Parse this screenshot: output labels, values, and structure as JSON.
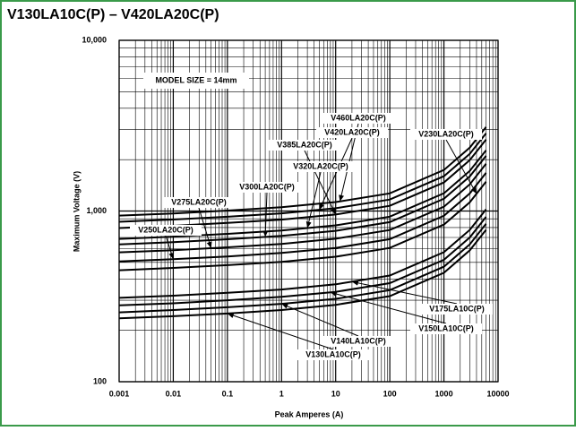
{
  "chart_data": {
    "type": "line",
    "title": "V130LA10C(P) – V420LA20C(P)",
    "annotation": "MODEL SIZE = 14mm",
    "x_label": "Peak Amperes (A)",
    "y_label": "Maximum Voltage (V)",
    "log_x": true,
    "log_y": true,
    "grid": true,
    "xlim": [
      0.001,
      10000
    ],
    "xticks": [
      0.001,
      0.01,
      0.1,
      1,
      10,
      100,
      1000,
      10000
    ],
    "ylim": [
      100,
      10000
    ],
    "yticks": [
      100,
      {
        "value": 1000,
        "label": "1,000"
      },
      {
        "value": 10000,
        "label": "10,000"
      }
    ],
    "x": [
      0.001,
      0.01,
      0.1,
      1,
      10,
      100,
      1000,
      3000,
      6000
    ],
    "series": [
      {
        "name": "V460LA20C(P)",
        "color": "#000000",
        "values": [
          940,
          968,
          1006,
          1053,
          1128,
          1269,
          1739,
          2350,
          3102
        ]
      },
      {
        "name": "V420LA20C(P)",
        "color": "#000000",
        "values": [
          865,
          891,
          926,
          969,
          1038,
          1168,
          1600,
          2163,
          2855
        ]
      },
      {
        "name": "V385LA20C(P)",
        "color": "#000000",
        "values": [
          795,
          819,
          851,
          890,
          954,
          1073,
          1471,
          1988,
          2624
        ]
      },
      {
        "name": "V320LA20C(P)",
        "color": "#000000",
        "values": [
          687,
          708,
          735,
          769,
          824,
          927,
          1271,
          1718,
          2267
        ]
      },
      {
        "name": "V300LA20C(P)",
        "color": "#000000",
        "values": [
          638,
          657,
          683,
          715,
          766,
          861,
          1180,
          1595,
          2105
        ]
      },
      {
        "name": "V275LA20C(P)",
        "color": "#000000",
        "values": [
          573,
          590,
          613,
          642,
          688,
          774,
          1060,
          1433,
          1891
        ]
      },
      {
        "name": "V250LA20C(P)",
        "color": "#000000",
        "values": [
          507,
          522,
          542,
          568,
          608,
          684,
          938,
          1268,
          1673
        ]
      },
      {
        "name": "V230LA20C(P)",
        "color": "#000000",
        "values": [
          450,
          464,
          482,
          504,
          540,
          608,
          833,
          1125,
          1485
        ]
      },
      {
        "name": "V175LA10C(P)",
        "color": "#000000",
        "values": [
          310,
          319,
          332,
          347,
          372,
          419,
          574,
          775,
          1023
        ]
      },
      {
        "name": "V150LA10C(P)",
        "color": "#000000",
        "values": [
          280,
          288,
          300,
          314,
          336,
          378,
          518,
          700,
          924
        ]
      },
      {
        "name": "V140LA10C(P)",
        "color": "#000000",
        "values": [
          255,
          263,
          273,
          286,
          306,
          344,
          472,
          638,
          842
        ]
      },
      {
        "name": "V130LA10C(P)",
        "color": "#000000",
        "values": [
          235,
          242,
          251,
          263,
          282,
          317,
          435,
          588,
          776
        ]
      }
    ]
  }
}
